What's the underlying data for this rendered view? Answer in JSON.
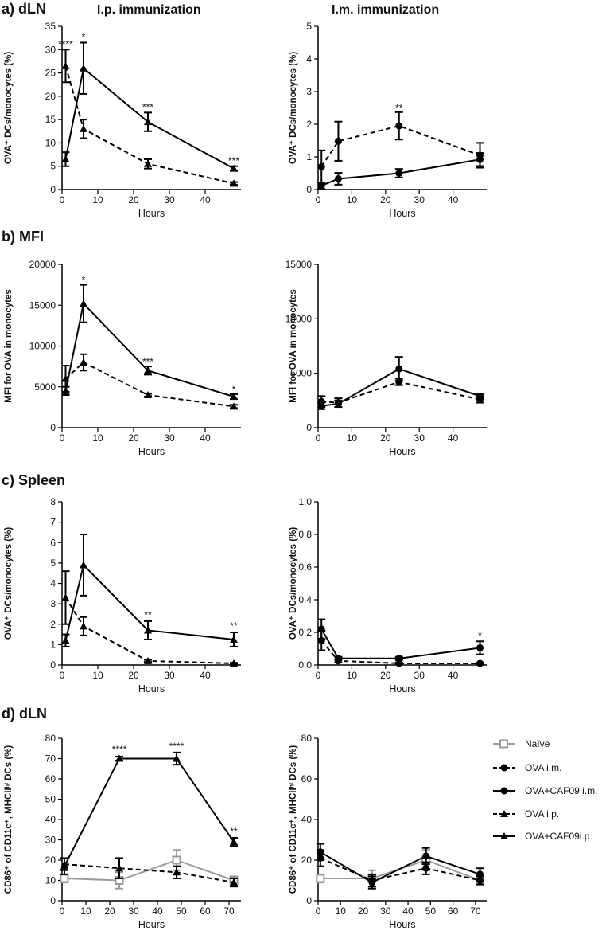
{
  "figure": {
    "col_titles": [
      "I.p. immunization",
      "I.m. immunization"
    ],
    "sections": [
      "a) dLN",
      "b) MFI",
      "c) Spleen",
      "d) dLN"
    ]
  },
  "legend": [
    {
      "key": "naive",
      "label": "Naïve",
      "color": "#9b9b9b",
      "marker": "square-open",
      "dash": "solid"
    },
    {
      "key": "ova_im",
      "label": "OVA i.m.",
      "color": "#000000",
      "marker": "circle",
      "dash": "dashed"
    },
    {
      "key": "caf_im",
      "label": "OVA+CAF09 i.m.",
      "color": "#000000",
      "marker": "circle",
      "dash": "solid"
    },
    {
      "key": "ova_ip",
      "label": "OVA i.p.",
      "color": "#000000",
      "marker": "triangle",
      "dash": "dashed"
    },
    {
      "key": "caf_ip",
      "label": "OVA+CAF09i.p.",
      "color": "#000000",
      "marker": "triangle",
      "dash": "solid"
    }
  ],
  "chart_data": [
    {
      "id": "a-ip",
      "type": "line",
      "xlabel": "Hours",
      "ylabel": "OVA⁺ DCs/monocytes (%)",
      "xlim": [
        0,
        50
      ],
      "xticks": [
        0,
        10,
        20,
        30,
        40
      ],
      "ylim": [
        0,
        35
      ],
      "yticks": [
        0,
        5,
        10,
        15,
        20,
        25,
        30,
        35
      ],
      "series": [
        {
          "name": "OVA i.p.",
          "key": "ova_ip",
          "points": [
            [
              1,
              26.5,
              3.5
            ],
            [
              6,
              13,
              2
            ],
            [
              24,
              5.5,
              1
            ],
            [
              48,
              1.3,
              0.3
            ]
          ]
        },
        {
          "name": "OVA+CAF09i.p.",
          "key": "caf_ip",
          "points": [
            [
              1,
              6.5,
              1.5
            ],
            [
              6,
              26,
              5.5
            ],
            [
              24,
              14.5,
              2
            ],
            [
              48,
              4.5,
              0.5
            ]
          ]
        }
      ],
      "annotations": [
        {
          "x": 1,
          "y": 30.5,
          "text": "****"
        },
        {
          "x": 6,
          "y": 32,
          "text": "*"
        },
        {
          "x": 24,
          "y": 17,
          "text": "***"
        },
        {
          "x": 48,
          "y": 5.5,
          "text": "***"
        }
      ]
    },
    {
      "id": "a-im",
      "type": "line",
      "xlabel": "Hours",
      "ylabel": "OVA⁺ DCs/monocytes (%)",
      "xlim": [
        0,
        50
      ],
      "xticks": [
        0,
        10,
        20,
        30,
        40
      ],
      "ylim": [
        0,
        5
      ],
      "yticks": [
        0,
        1,
        2,
        3,
        4,
        5
      ],
      "series": [
        {
          "name": "OVA i.m.",
          "key": "ova_im",
          "points": [
            [
              1,
              0.7,
              0.5
            ],
            [
              6,
              1.48,
              0.6
            ],
            [
              24,
              1.95,
              0.42
            ],
            [
              48,
              1.05,
              0.38
            ]
          ]
        },
        {
          "name": "OVA+CAF09 i.m.",
          "key": "caf_im",
          "points": [
            [
              1,
              0.12,
              0.1
            ],
            [
              6,
              0.33,
              0.18
            ],
            [
              24,
              0.5,
              0.13
            ],
            [
              48,
              0.92,
              0.2
            ]
          ]
        }
      ],
      "annotations": [
        {
          "x": 24,
          "y": 2.4,
          "text": "**"
        }
      ]
    },
    {
      "id": "b-ip",
      "type": "line",
      "xlabel": "Hours",
      "ylabel": "MFI for OVA in monocytes",
      "xlim": [
        0,
        50
      ],
      "xticks": [
        0,
        10,
        20,
        30,
        40
      ],
      "ylim": [
        0,
        20000
      ],
      "yticks": [
        0,
        5000,
        10000,
        15000,
        20000
      ],
      "series": [
        {
          "name": "OVA i.p.",
          "key": "ova_ip",
          "points": [
            [
              1,
              6000,
              1600
            ],
            [
              6,
              8000,
              1000
            ],
            [
              24,
              4000,
              200
            ],
            [
              48,
              2600,
              200
            ]
          ]
        },
        {
          "name": "OVA+CAF09i.p.",
          "key": "caf_ip",
          "points": [
            [
              1,
              4500,
              500
            ],
            [
              6,
              15200,
              2300
            ],
            [
              24,
              7000,
              500
            ],
            [
              48,
              3800,
              300
            ]
          ]
        }
      ],
      "annotations": [
        {
          "x": 6,
          "y": 17700,
          "text": "*"
        },
        {
          "x": 24,
          "y": 7700,
          "text": "***"
        },
        {
          "x": 48,
          "y": 4300,
          "text": "*"
        }
      ]
    },
    {
      "id": "b-im",
      "type": "line",
      "xlabel": "Hours",
      "ylabel": "MFI for OVA in monocytes",
      "xlim": [
        0,
        50
      ],
      "xticks": [
        0,
        10,
        20,
        30,
        40
      ],
      "ylim": [
        0,
        15000
      ],
      "yticks": [
        0,
        5000,
        10000,
        15000
      ],
      "series": [
        {
          "name": "OVA i.m.",
          "key": "ova_im",
          "points": [
            [
              1,
              2400,
              500
            ],
            [
              6,
              2300,
              400
            ],
            [
              24,
              4200,
              300
            ],
            [
              48,
              2600,
              300
            ]
          ]
        },
        {
          "name": "OVA+CAF09 i.m.",
          "key": "caf_im",
          "points": [
            [
              1,
              2000,
              300
            ],
            [
              6,
              2200,
              300
            ],
            [
              24,
              5400,
              1100
            ],
            [
              48,
              2900,
              200
            ]
          ]
        }
      ],
      "annotations": []
    },
    {
      "id": "c-ip",
      "type": "line",
      "xlabel": "Hours",
      "ylabel": "OVA⁺ DCs/monocytes (%)",
      "xlim": [
        0,
        50
      ],
      "xticks": [
        0,
        10,
        20,
        30,
        40
      ],
      "ylim": [
        0,
        8
      ],
      "yticks": [
        0,
        1,
        2,
        3,
        4,
        5,
        6,
        7,
        8
      ],
      "series": [
        {
          "name": "OVA i.p.",
          "key": "ova_ip",
          "points": [
            [
              1,
              3.3,
              1.3
            ],
            [
              6,
              1.9,
              0.45
            ],
            [
              24,
              0.2,
              0.05
            ],
            [
              48,
              0.08,
              0.03
            ]
          ]
        },
        {
          "name": "OVA+CAF09i.p.",
          "key": "caf_ip",
          "points": [
            [
              1,
              1.2,
              0.3
            ],
            [
              6,
              4.9,
              1.5
            ],
            [
              24,
              1.7,
              0.45
            ],
            [
              48,
              1.25,
              0.35
            ]
          ]
        }
      ],
      "annotations": [
        {
          "x": 24,
          "y": 2.3,
          "text": "**"
        },
        {
          "x": 48,
          "y": 1.75,
          "text": "**"
        }
      ]
    },
    {
      "id": "c-im",
      "type": "line",
      "xlabel": "Hours",
      "ylabel": "OVA⁺ DCs/monocytes (%)",
      "xlim": [
        0,
        50
      ],
      "xticks": [
        0,
        10,
        20,
        30,
        40
      ],
      "ylim": [
        0,
        1
      ],
      "yticks": [
        0.0,
        0.2,
        0.4,
        0.6,
        0.8,
        1.0
      ],
      "series": [
        {
          "name": "OVA i.m.",
          "key": "ova_im",
          "points": [
            [
              1,
              0.15,
              0.06
            ],
            [
              6,
              0.025,
              0.01
            ],
            [
              24,
              0.01,
              0.005
            ],
            [
              48,
              0.01,
              0.005
            ]
          ]
        },
        {
          "name": "OVA+CAF09 i.m.",
          "key": "caf_im",
          "points": [
            [
              1,
              0.22,
              0.06
            ],
            [
              6,
              0.04,
              0.01
            ],
            [
              24,
              0.04,
              0.01
            ],
            [
              48,
              0.105,
              0.04
            ]
          ]
        }
      ],
      "annotations": [
        {
          "x": 48,
          "y": 0.16,
          "text": "*"
        }
      ]
    },
    {
      "id": "d-ip",
      "type": "line",
      "xlabel": "Hours",
      "ylabel": "CD86⁺ of CD11c⁺, MHCIIʰⁱ DCs (%)",
      "xlim": [
        0,
        75
      ],
      "xticks": [
        0,
        10,
        20,
        30,
        40,
        50,
        60,
        70
      ],
      "ylim": [
        0,
        80
      ],
      "yticks": [
        0,
        10,
        20,
        30,
        40,
        50,
        60,
        70,
        80
      ],
      "series": [
        {
          "name": "Naïve",
          "key": "naive",
          "points": [
            [
              1,
              11,
              2
            ],
            [
              24,
              10,
              4
            ],
            [
              48,
              20,
              5
            ],
            [
              72,
              10,
              2
            ]
          ]
        },
        {
          "name": "OVA i.p.",
          "key": "ova_ip",
          "points": [
            [
              1,
              18,
              3
            ],
            [
              24,
              16,
              5
            ],
            [
              48,
              14,
              3
            ],
            [
              72,
              9,
              2
            ]
          ]
        },
        {
          "name": "OVA+CAF09i.p.",
          "key": "caf_ip",
          "points": [
            [
              1,
              17,
              4
            ],
            [
              24,
              70,
              1
            ],
            [
              48,
              70,
              3
            ],
            [
              72,
              29,
              2
            ]
          ]
        }
      ],
      "annotations": [
        {
          "x": 24,
          "y": 73,
          "text": "****"
        },
        {
          "x": 48,
          "y": 74.5,
          "text": "****"
        },
        {
          "x": 72,
          "y": 32.5,
          "text": "**"
        }
      ]
    },
    {
      "id": "d-im",
      "type": "line",
      "xlabel": "Hours",
      "ylabel": "CD86⁺ of CD11c⁺, MHCIIʰⁱ DCs (%)",
      "xlim": [
        0,
        75
      ],
      "xticks": [
        0,
        10,
        20,
        30,
        40,
        50,
        60,
        70
      ],
      "ylim": [
        0,
        80
      ],
      "yticks": [
        0,
        20,
        40,
        60,
        80
      ],
      "series": [
        {
          "name": "Naïve",
          "key": "naive",
          "points": [
            [
              1,
              11,
              2
            ],
            [
              24,
              11,
              4
            ],
            [
              48,
              20,
              5
            ],
            [
              72,
              10,
              2
            ]
          ]
        },
        {
          "name": "OVA i.m.",
          "key": "ova_im",
          "points": [
            [
              1,
              21,
              4
            ],
            [
              24,
              10,
              3
            ],
            [
              48,
              16,
              3
            ],
            [
              72,
              10,
              2
            ]
          ]
        },
        {
          "name": "OVA+CAF09 i.m.",
          "key": "caf_im",
          "points": [
            [
              1,
              24,
              4
            ],
            [
              24,
              9,
              3
            ],
            [
              48,
              22,
              4
            ],
            [
              72,
              13,
              3
            ]
          ]
        }
      ],
      "annotations": []
    }
  ]
}
